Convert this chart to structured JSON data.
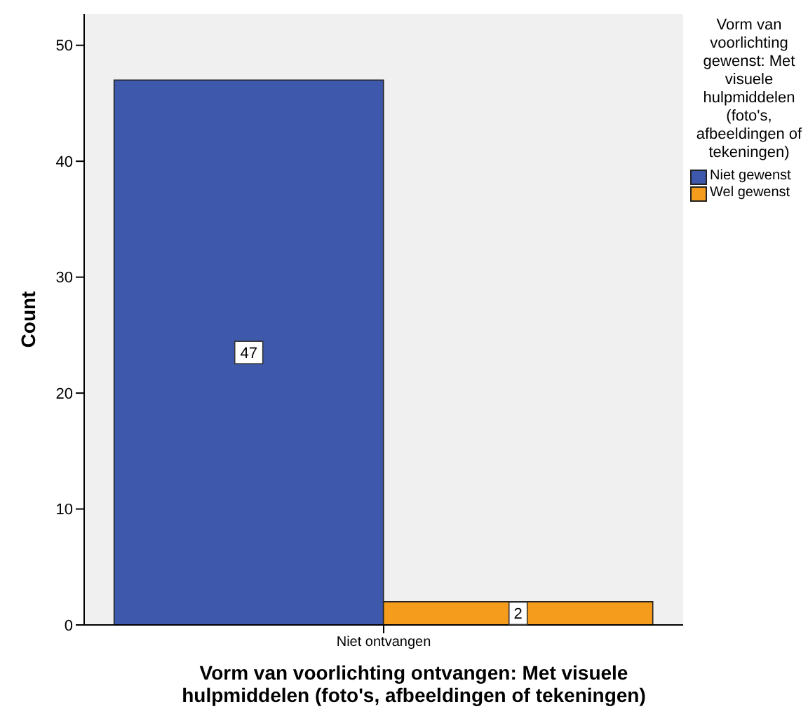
{
  "chart_data": {
    "type": "bar",
    "categories": [
      "Niet ontvangen"
    ],
    "series": [
      {
        "name": "Niet gewenst",
        "color": "#3e58ac",
        "values": [
          47
        ]
      },
      {
        "name": "Wel gewenst",
        "color": "#f59c1c",
        "values": [
          2
        ]
      }
    ],
    "xlabel": "Vorm van voorlichting ontvangen: Met visuele hulpmiddelen (foto's, afbeeldingen of tekeningen)",
    "ylabel": "Count",
    "legend_title": "Vorm van voorlichting gewenst: Met visuele hulpmiddelen (foto's, afbeeldingen of tekeningen)",
    "ylim": [
      0,
      52.7
    ],
    "yticks": [
      0,
      10,
      20,
      30,
      40,
      50
    ],
    "grid": false,
    "legend": "right",
    "data_labels": true
  }
}
